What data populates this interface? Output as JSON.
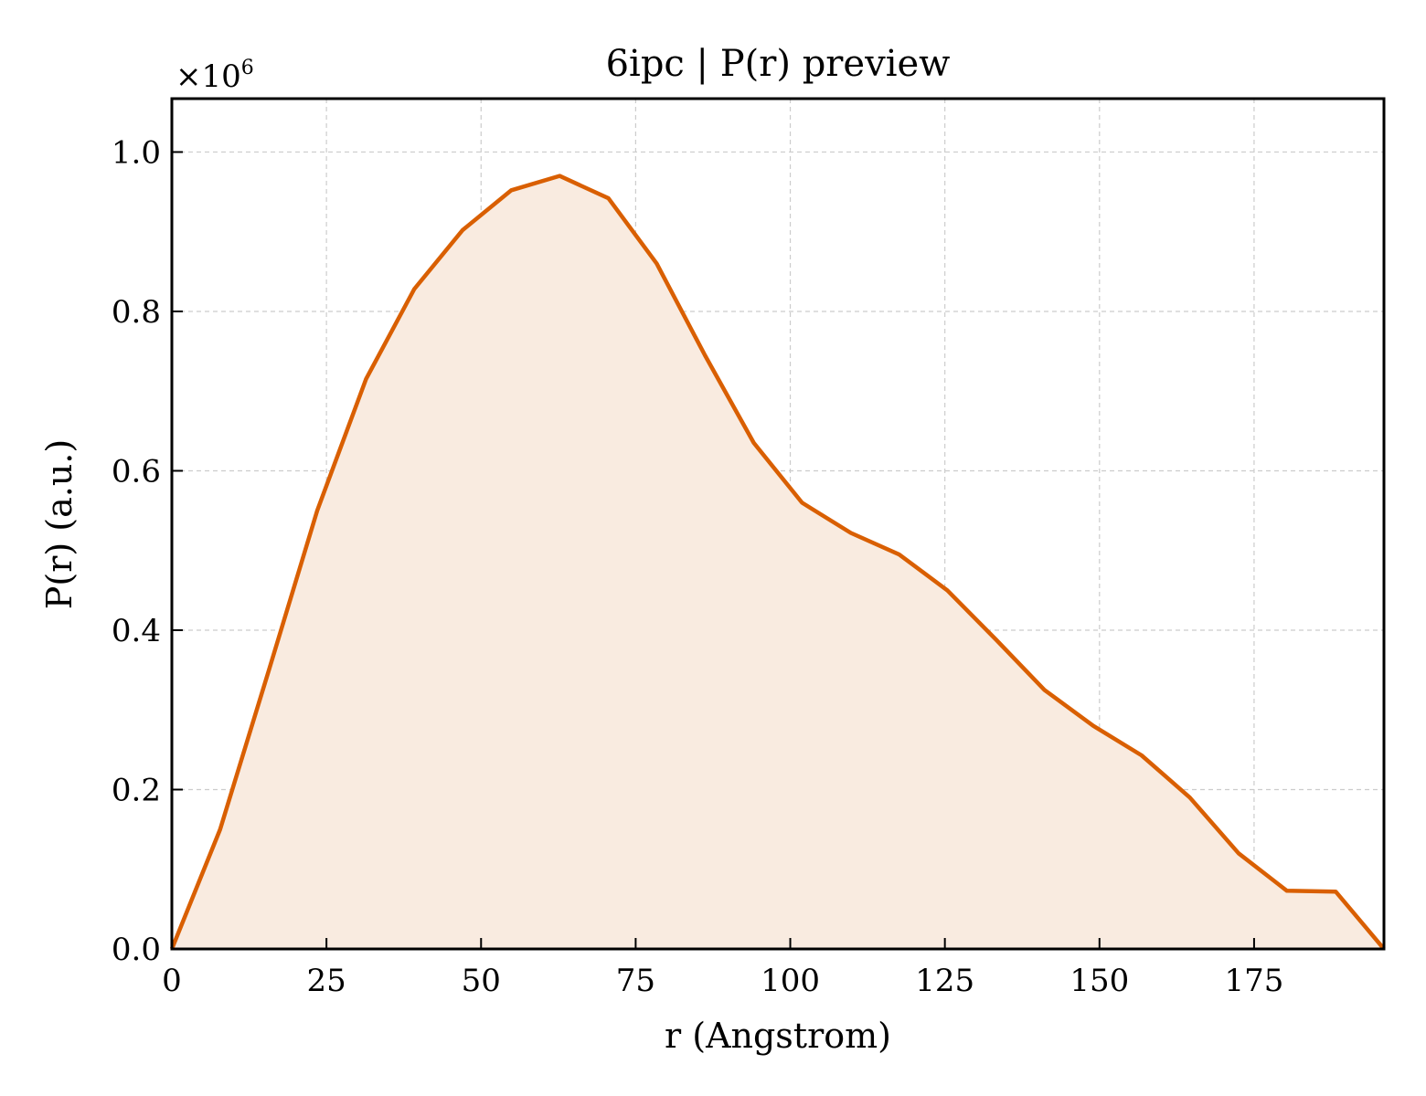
{
  "chart_data": {
    "type": "area",
    "title": "6ipc | P(r) preview",
    "xlabel": "r (Angstrom)",
    "ylabel": "P(r) (a.u.)",
    "y_multiplier_label": "×10",
    "y_multiplier_exponent": "6",
    "xlim": [
      0,
      196
    ],
    "ylim": [
      0,
      1.067
    ],
    "xticks": [
      0,
      25,
      50,
      75,
      100,
      125,
      150,
      175
    ],
    "xtick_labels": [
      "0",
      "25",
      "50",
      "75",
      "100",
      "125",
      "150",
      "175"
    ],
    "yticks": [
      0.0,
      0.2,
      0.4,
      0.6,
      0.8,
      1.0
    ],
    "ytick_labels": [
      "0.0",
      "0.2",
      "0.4",
      "0.6",
      "0.8",
      "1.0"
    ],
    "grid": true,
    "colors": {
      "line": "#d95f02",
      "fill": "#f9ebe0"
    },
    "series": [
      {
        "x": [
          0,
          7.8,
          15.7,
          23.5,
          31.4,
          39.2,
          47.0,
          54.9,
          62.7,
          70.6,
          78.4,
          86.2,
          94.1,
          101.9,
          109.8,
          117.6,
          125.4,
          133.3,
          141.1,
          149.0,
          156.8,
          164.6,
          172.5,
          180.3,
          188.2,
          196.0
        ],
        "y": [
          0.0,
          0.15,
          0.35,
          0.55,
          0.715,
          0.828,
          0.902,
          0.952,
          0.97,
          0.942,
          0.86,
          0.745,
          0.635,
          0.56,
          0.522,
          0.495,
          0.45,
          0.388,
          0.325,
          0.28,
          0.243,
          0.19,
          0.12,
          0.073,
          0.072,
          0.0
        ]
      }
    ]
  }
}
